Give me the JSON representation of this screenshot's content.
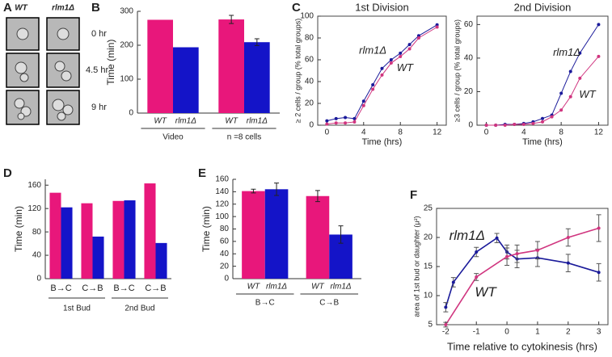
{
  "panel_a": {
    "label": "A",
    "columns": [
      "WT",
      "rlm1Δ"
    ],
    "rows": [
      "0 hr",
      "4.5 hr",
      "9 hr"
    ]
  },
  "chart_data": [
    {
      "panel": "B",
      "type": "bar",
      "ylabel": "Time (min)",
      "categories": [
        "Video",
        "n =8 cells"
      ],
      "series": [
        {
          "name": "WT",
          "color": "#e8177b",
          "values": [
            275,
            276
          ],
          "errors": [
            null,
            12
          ]
        },
        {
          "name": "rlm1Δ",
          "color": "#1414c8",
          "values": [
            194,
            209
          ],
          "errors": [
            null,
            10
          ]
        }
      ],
      "ylim": [
        0,
        300
      ],
      "yticks": [
        0,
        100,
        200,
        300
      ],
      "series_labels_under_bars": true
    },
    {
      "panel": "C",
      "type": "line",
      "title": "1st Division",
      "xlabel": "Time (hrs)",
      "ylabel": "≥ 2 cells / group (% total groups)",
      "x": [
        0,
        1,
        2,
        3,
        4,
        5,
        6,
        7,
        8,
        9,
        10,
        12
      ],
      "series": [
        {
          "name": "rlm1Δ",
          "color": "#1a1a9a",
          "values": [
            4,
            6,
            7,
            6,
            22,
            37,
            52,
            60,
            66,
            74,
            82,
            92
          ]
        },
        {
          "name": "WT",
          "color": "#d0357f",
          "values": [
            1,
            2,
            2,
            3,
            18,
            33,
            46,
            57,
            63,
            70,
            80,
            90
          ]
        }
      ],
      "xlim": [
        -1,
        13
      ],
      "xticks": [
        0,
        4,
        8,
        12
      ],
      "ylim": [
        0,
        100
      ],
      "yticks": [
        0,
        20,
        40,
        60,
        80,
        100
      ]
    },
    {
      "type": "line",
      "title": "2nd Division",
      "xlabel": "Time (hrs)",
      "ylabel": "≥3 cells / group (% total groups)",
      "x": [
        0,
        1,
        2,
        3,
        4,
        5,
        6,
        7,
        8,
        9,
        10,
        12
      ],
      "series": [
        {
          "name": "rlm1Δ",
          "color": "#1a1a9a",
          "values": [
            0,
            0,
            0.5,
            0.5,
            1,
            2,
            4,
            6,
            19,
            32,
            43,
            60
          ]
        },
        {
          "name": "WT",
          "color": "#d0357f",
          "values": [
            0,
            0,
            0,
            0.5,
            0.5,
            1,
            2,
            5,
            9,
            17,
            28,
            41
          ]
        }
      ],
      "xlim": [
        -1,
        13
      ],
      "xticks": [
        0,
        4,
        8,
        12
      ],
      "ylim": [
        0,
        65
      ],
      "yticks": [
        0,
        20,
        40,
        60
      ]
    },
    {
      "panel": "D",
      "type": "bar",
      "ylabel": "Time (min)",
      "categories": [
        "B→C",
        "C→B",
        "B→C",
        "C→B"
      ],
      "groups": [
        "1st Bud",
        "2nd Bud"
      ],
      "series": [
        {
          "name": "WT",
          "color": "#e8177b",
          "values": [
            147,
            129,
            133,
            163
          ]
        },
        {
          "name": "rlm1Δ",
          "color": "#1414c8",
          "values": [
            122,
            72,
            134,
            61
          ]
        }
      ],
      "ylim": [
        0,
        170
      ],
      "yticks": [
        0,
        40,
        80,
        120,
        160
      ]
    },
    {
      "panel": "E",
      "type": "bar",
      "ylabel": "Time (min)",
      "categories": [
        "B→C",
        "C→B"
      ],
      "series": [
        {
          "name": "WT",
          "color": "#e8177b",
          "values": [
            141,
            133
          ],
          "errors": [
            3,
            9
          ]
        },
        {
          "name": "rlm1Δ",
          "color": "#1414c8",
          "values": [
            144,
            71
          ],
          "errors": [
            10,
            14
          ]
        }
      ],
      "ylim": [
        0,
        160
      ],
      "yticks": [
        0,
        20,
        40,
        60,
        80,
        100,
        120,
        140,
        160
      ],
      "series_labels_under_bars": true
    },
    {
      "panel": "F",
      "type": "line",
      "xlabel": "Time relative to cytokinesis (hrs)",
      "ylabel": "area of 1st bud or daughter (μ²)",
      "series": [
        {
          "name": "rlm1Δ",
          "color": "#1a1a9a",
          "x": [
            -2,
            -1.75,
            -1,
            -0.33,
            0,
            0.33,
            1,
            2,
            3
          ],
          "values": [
            8,
            12.3,
            17.5,
            19.9,
            17.5,
            16.3,
            16.5,
            15.6,
            14
          ],
          "errors": [
            0.8,
            0.8,
            0.8,
            0.8,
            1.2,
            1.5,
            1.5,
            1.5,
            1.5
          ]
        },
        {
          "name": "WT",
          "color": "#d0357f",
          "x": [
            -2,
            -1,
            0,
            0.33,
            1,
            2,
            3
          ],
          "values": [
            5,
            13.2,
            16.7,
            17.2,
            17.8,
            20,
            21.6
          ],
          "errors": [
            0.4,
            0.6,
            1.5,
            1.5,
            1.5,
            1.5,
            2.3
          ]
        }
      ],
      "xlim": [
        -2.3,
        3.3
      ],
      "xticks": [
        -2,
        -1,
        0,
        1,
        2,
        3
      ],
      "ylim": [
        5,
        25
      ],
      "yticks": [
        5,
        10,
        15,
        20,
        25
      ],
      "colored_labels": true
    }
  ]
}
